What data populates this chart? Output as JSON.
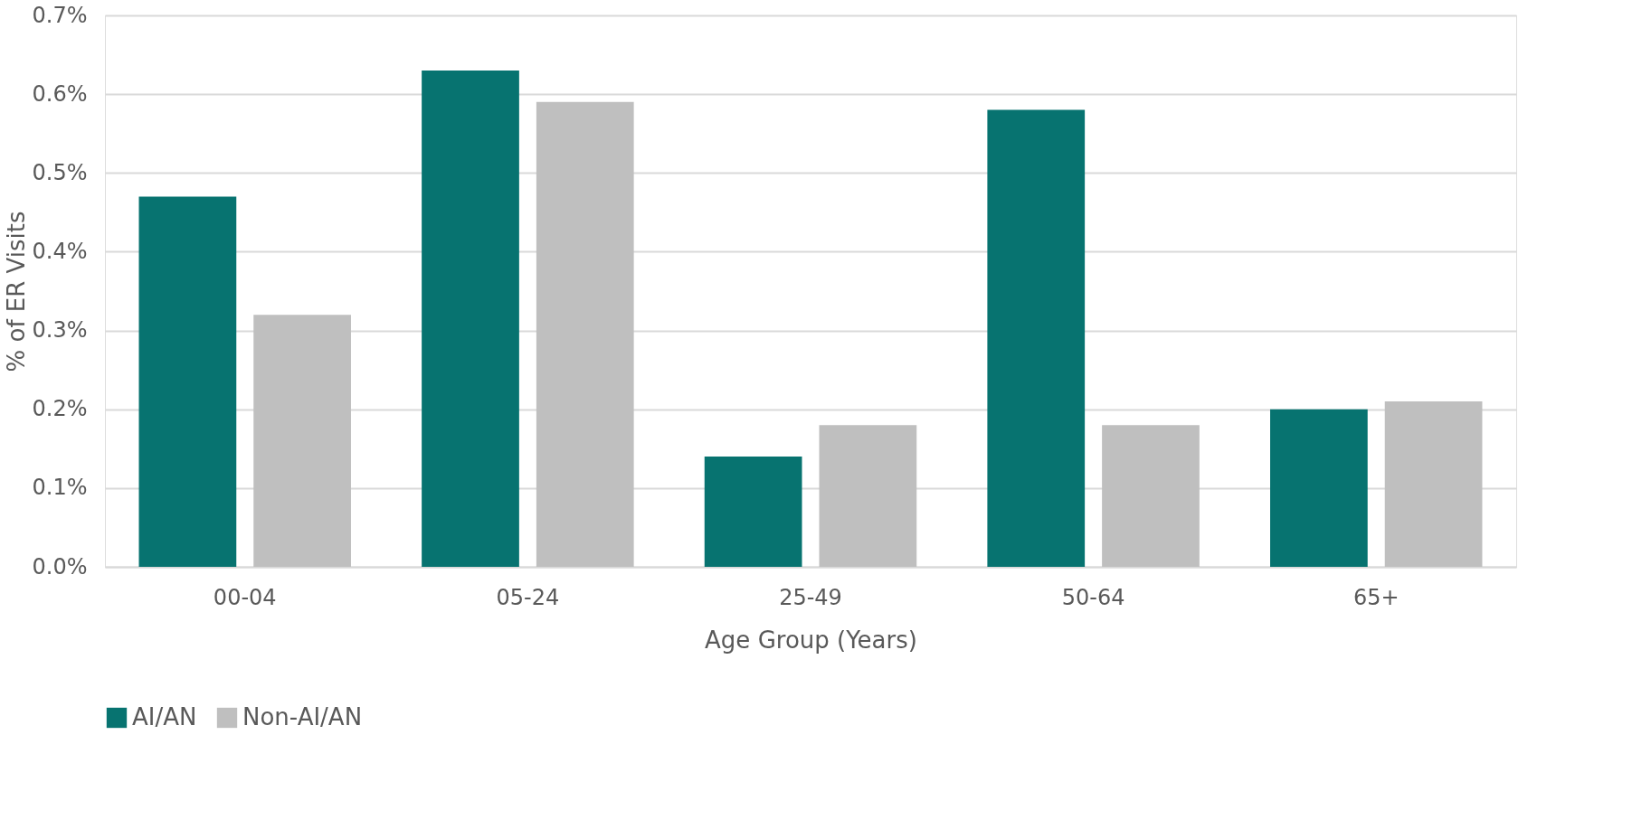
{
  "chart_data": {
    "type": "bar",
    "xlabel": "Age Group (Years)",
    "ylabel": "% of ER Visits",
    "categories": [
      "00-04",
      "05-24",
      "25-49",
      "50-64",
      "65+"
    ],
    "series": [
      {
        "name": "AI/AN",
        "color": "#077370",
        "values": [
          0.47,
          0.63,
          0.14,
          0.58,
          0.2
        ]
      },
      {
        "name": "Non-AI/AN",
        "color": "#bfbfbf",
        "values": [
          0.32,
          0.59,
          0.18,
          0.18,
          0.21
        ]
      }
    ],
    "ylim": [
      0,
      0.7
    ],
    "yticks": [
      {
        "value": 0,
        "label": "0.0%"
      },
      {
        "value": 0.1,
        "label": "0.1%"
      },
      {
        "value": 0.2,
        "label": "0.2%"
      },
      {
        "value": 0.3,
        "label": "0.3%"
      },
      {
        "value": 0.4,
        "label": "0.4%"
      },
      {
        "value": 0.5,
        "label": "0.5%"
      },
      {
        "value": 0.6,
        "label": "0.6%"
      },
      {
        "value": 0.7,
        "label": "0.7%"
      }
    ],
    "grid": "y",
    "legend": "bottom"
  }
}
